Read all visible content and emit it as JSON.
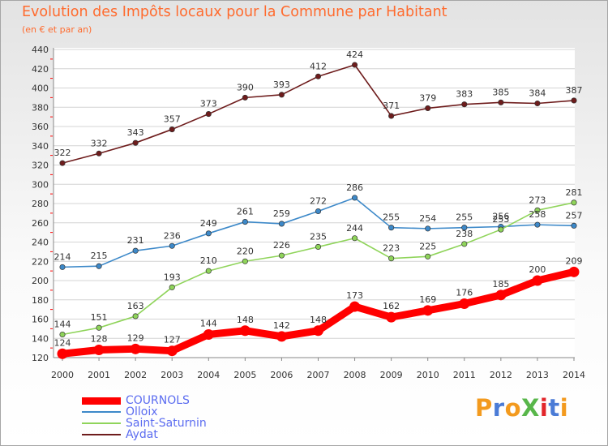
{
  "header": {
    "title": "Evolution des Impôts locaux pour la Commune par Habitant",
    "subtitle": "(en € et par an)"
  },
  "brand": {
    "text": "ProXiti",
    "colors": [
      "#f39a1e",
      "#4a7bd6",
      "#f39a1e",
      "#58b64a",
      "#e2262b",
      "#4a7bd6",
      "#f39a1e"
    ]
  },
  "chart_data": {
    "type": "line",
    "title": "Evolution des Impôts locaux pour la Commune par Habitant",
    "subtitle": "(en € et par an)",
    "x": [
      "2000",
      "2001",
      "2002",
      "2003",
      "2004",
      "2005",
      "2006",
      "2007",
      "2008",
      "2009",
      "2010",
      "2011",
      "2012",
      "2013",
      "2014"
    ],
    "yticks": [
      120,
      140,
      160,
      180,
      200,
      220,
      240,
      260,
      280,
      300,
      320,
      340,
      360,
      380,
      400,
      420,
      440
    ],
    "ylim": [
      120,
      440
    ],
    "grid": true,
    "legend_position": "bottom-left",
    "series": [
      {
        "name": "Aydat",
        "color": "#6e1c1c",
        "values": [
          322,
          332,
          343,
          357,
          373,
          390,
          393,
          412,
          424,
          371,
          379,
          383,
          385,
          384,
          387
        ]
      },
      {
        "name": "Olloix",
        "color": "#3d89c9",
        "values": [
          214,
          215,
          231,
          236,
          249,
          261,
          259,
          272,
          286,
          255,
          254,
          255,
          256,
          258,
          257
        ]
      },
      {
        "name": "Saint-Saturnin",
        "color": "#8fd45a",
        "values": [
          144,
          151,
          163,
          193,
          210,
          220,
          226,
          235,
          244,
          223,
          225,
          238,
          253,
          273,
          281
        ]
      },
      {
        "name": "COURNOLS",
        "color": "#ff0000",
        "values": [
          124,
          128,
          129,
          127,
          144,
          148,
          142,
          148,
          173,
          162,
          169,
          176,
          185,
          200,
          209
        ]
      }
    ]
  }
}
